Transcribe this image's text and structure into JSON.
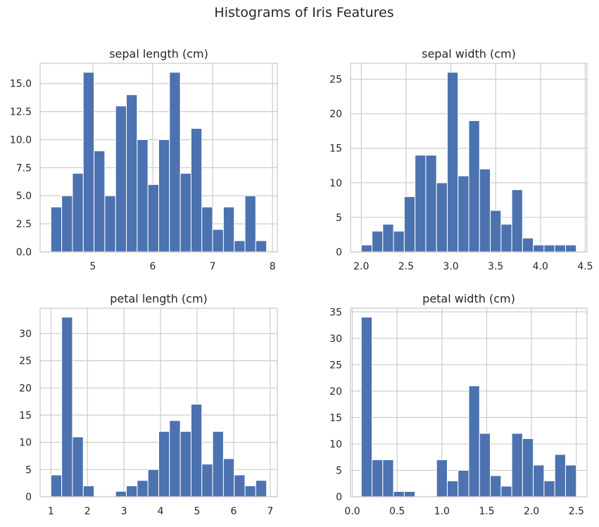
{
  "figure": {
    "title": "Histograms of Iris Features",
    "bar_color": "#4c72b0",
    "grid_color": "#cccccc"
  },
  "chart_data": [
    {
      "type": "bar",
      "title": "sepal length (cm)",
      "xlabel": "",
      "ylabel": "",
      "grid": true,
      "bin_edges": [
        4.3,
        4.48,
        4.66,
        4.84,
        5.02,
        5.2,
        5.38,
        5.56,
        5.74,
        5.92,
        6.1,
        6.28,
        6.46,
        6.64,
        6.82,
        7.0,
        7.18,
        7.36,
        7.54,
        7.72,
        7.9
      ],
      "values": [
        4,
        5,
        7,
        16,
        9,
        5,
        13,
        14,
        10,
        6,
        10,
        16,
        7,
        11,
        4,
        2,
        4,
        1,
        5,
        1
      ],
      "xlim": [
        4.12,
        8.08
      ],
      "ylim": [
        0,
        16.8
      ],
      "xticks": [
        5,
        6,
        7,
        8
      ],
      "xtick_labels": [
        "5",
        "6",
        "7",
        "8"
      ],
      "yticks": [
        0,
        2.5,
        5,
        7.5,
        10,
        12.5,
        15
      ],
      "ytick_labels": [
        "0.0",
        "2.5",
        "5.0",
        "7.5",
        "10.0",
        "12.5",
        "15.0"
      ]
    },
    {
      "type": "bar",
      "title": "sepal width (cm)",
      "xlabel": "",
      "ylabel": "",
      "grid": true,
      "bin_edges": [
        2.0,
        2.12,
        2.24,
        2.36,
        2.48,
        2.6,
        2.72,
        2.84,
        2.96,
        3.08,
        3.2,
        3.32,
        3.44,
        3.56,
        3.68,
        3.8,
        3.92,
        4.04,
        4.16,
        4.28,
        4.4
      ],
      "values": [
        1,
        3,
        4,
        3,
        8,
        14,
        14,
        10,
        26,
        11,
        19,
        12,
        6,
        4,
        9,
        2,
        1,
        1,
        1,
        1
      ],
      "xlim": [
        1.88,
        4.52
      ],
      "ylim": [
        0,
        27.3
      ],
      "xticks": [
        2.0,
        2.5,
        3.0,
        3.5,
        4.0,
        4.5
      ],
      "xtick_labels": [
        "2.0",
        "2.5",
        "3.0",
        "3.5",
        "4.0",
        "4.5"
      ],
      "yticks": [
        0,
        5,
        10,
        15,
        20,
        25
      ],
      "ytick_labels": [
        "0",
        "5",
        "10",
        "15",
        "20",
        "25"
      ]
    },
    {
      "type": "bar",
      "title": "petal length (cm)",
      "xlabel": "",
      "ylabel": "",
      "grid": true,
      "bin_edges": [
        1.0,
        1.295,
        1.59,
        1.885,
        2.18,
        2.475,
        2.77,
        3.065,
        3.36,
        3.655,
        3.95,
        4.245,
        4.54,
        4.835,
        5.13,
        5.425,
        5.72,
        6.015,
        6.31,
        6.605,
        6.9
      ],
      "values": [
        4,
        33,
        11,
        2,
        0,
        0,
        1,
        2,
        3,
        5,
        12,
        14,
        12,
        17,
        6,
        12,
        7,
        4,
        2,
        3
      ],
      "xlim": [
        0.705,
        7.195
      ],
      "ylim": [
        0,
        34.65
      ],
      "xticks": [
        1,
        2,
        3,
        4,
        5,
        6,
        7
      ],
      "xtick_labels": [
        "1",
        "2",
        "3",
        "4",
        "5",
        "6",
        "7"
      ],
      "yticks": [
        0,
        5,
        10,
        15,
        20,
        25,
        30
      ],
      "ytick_labels": [
        "0",
        "5",
        "10",
        "15",
        "20",
        "25",
        "30"
      ]
    },
    {
      "type": "bar",
      "title": "petal width (cm)",
      "xlabel": "",
      "ylabel": "",
      "grid": true,
      "bin_edges": [
        0.1,
        0.22,
        0.34,
        0.46,
        0.58,
        0.7,
        0.82,
        0.94,
        1.06,
        1.18,
        1.3,
        1.42,
        1.54,
        1.66,
        1.78,
        1.9,
        2.02,
        2.14,
        2.26,
        2.38,
        2.5
      ],
      "values": [
        34,
        7,
        7,
        1,
        1,
        0,
        0,
        7,
        3,
        5,
        21,
        12,
        4,
        2,
        12,
        11,
        6,
        3,
        8,
        6
      ],
      "xlim": [
        -0.02,
        2.62
      ],
      "ylim": [
        0,
        35.7
      ],
      "xticks": [
        0.0,
        0.5,
        1.0,
        1.5,
        2.0,
        2.5
      ],
      "xtick_labels": [
        "0.0",
        "0.5",
        "1.0",
        "1.5",
        "2.0",
        "2.5"
      ],
      "yticks": [
        0,
        5,
        10,
        15,
        20,
        25,
        30,
        35
      ],
      "ytick_labels": [
        "0",
        "5",
        "10",
        "15",
        "20",
        "25",
        "30",
        "35"
      ]
    }
  ]
}
